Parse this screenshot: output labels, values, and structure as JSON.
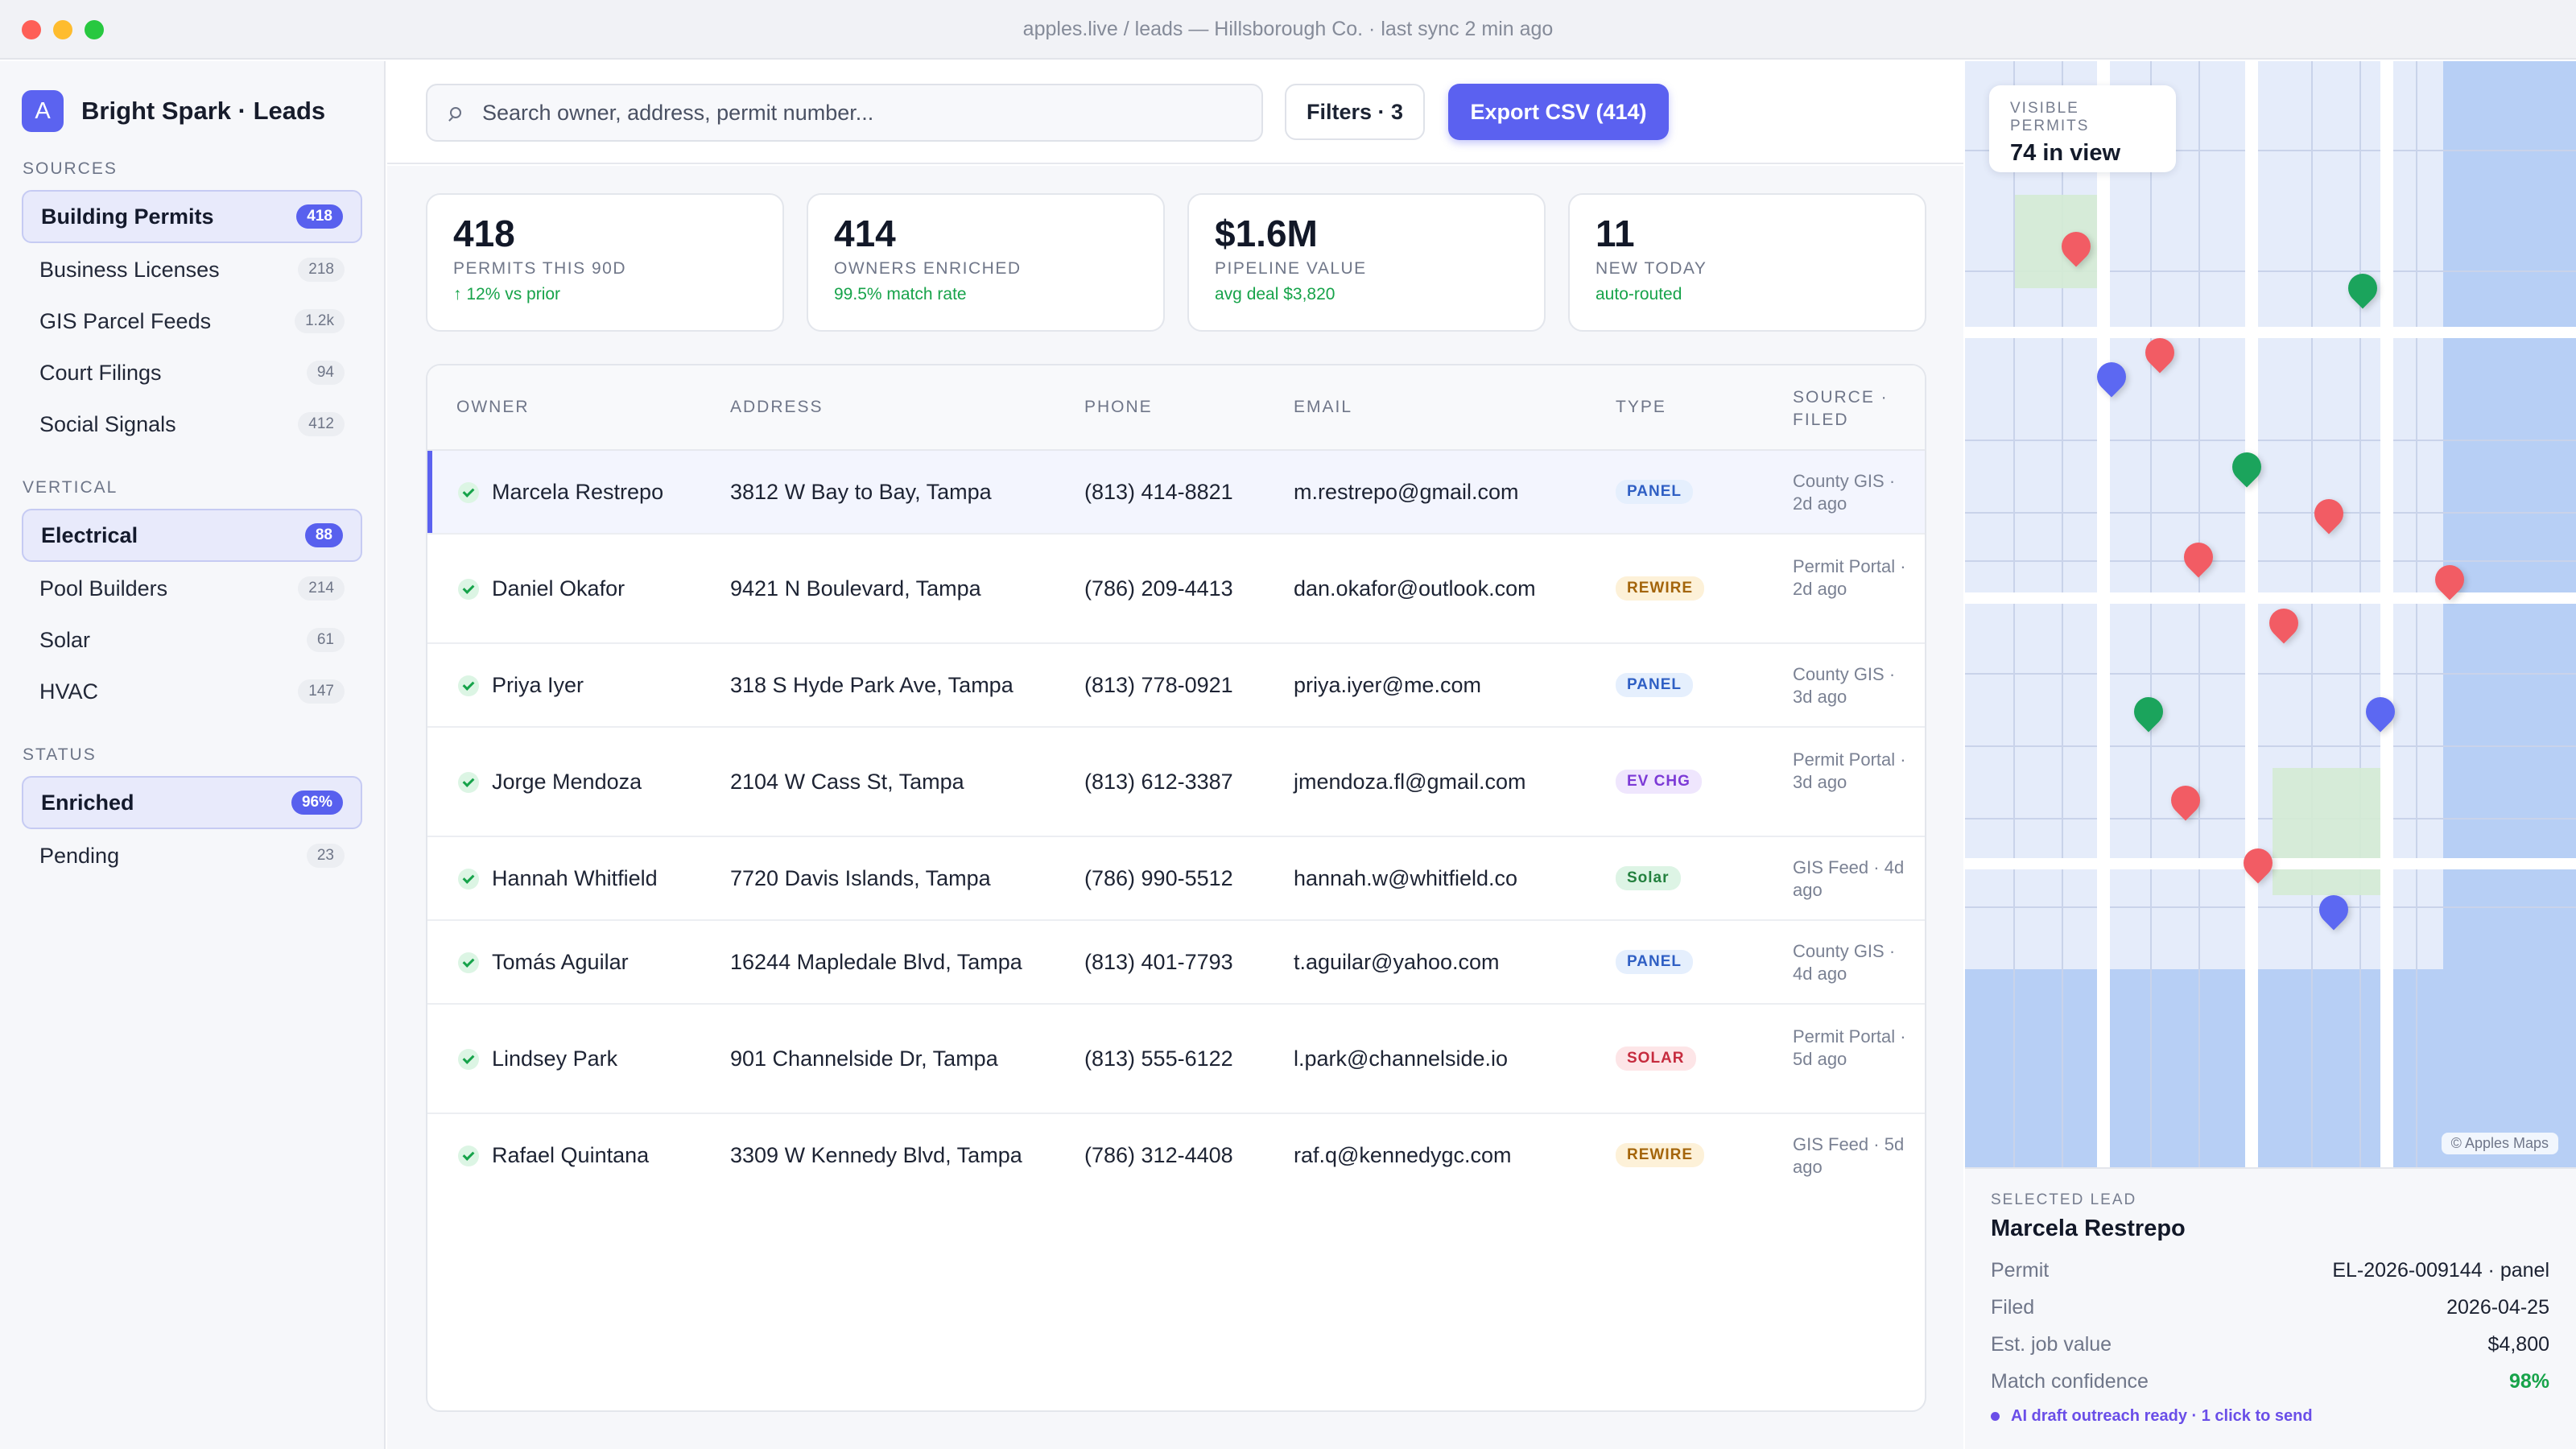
{
  "window": {
    "title": "apples.live / leads — Hillsborough Co. · last sync 2 min ago"
  },
  "brand": {
    "logo_letter": "A",
    "name": "Bright Spark · Leads"
  },
  "sidebar": {
    "sources_label": "SOURCES",
    "sources": [
      {
        "label": "Building Permits",
        "count": "418",
        "active": true
      },
      {
        "label": "Business Licenses",
        "count": "218"
      },
      {
        "label": "GIS Parcel Feeds",
        "count": "1.2k"
      },
      {
        "label": "Court Filings",
        "count": "94"
      },
      {
        "label": "Social Signals",
        "count": "412"
      }
    ],
    "vertical_label": "VERTICAL",
    "vertical": [
      {
        "label": "Electrical",
        "count": "88",
        "active": true
      },
      {
        "label": "Pool Builders",
        "count": "214"
      },
      {
        "label": "Solar",
        "count": "61"
      },
      {
        "label": "HVAC",
        "count": "147"
      }
    ],
    "status_label": "STATUS",
    "status": [
      {
        "label": "Enriched",
        "count": "96%",
        "active": true
      },
      {
        "label": "Pending",
        "count": "23"
      }
    ]
  },
  "toolbar": {
    "search_placeholder": "Search owner, address, permit number...",
    "filters_label": "Filters · 3",
    "export_label": "Export CSV (414)"
  },
  "stats": [
    {
      "value": "418",
      "label": "PERMITS THIS 90D",
      "sub": "↑ 12% vs prior"
    },
    {
      "value": "414",
      "label": "OWNERS ENRICHED",
      "sub": "99.5% match rate"
    },
    {
      "value": "$1.6M",
      "label": "PIPELINE VALUE",
      "sub": "avg deal $3,820"
    },
    {
      "value": "11",
      "label": "NEW TODAY",
      "sub": "auto-routed"
    }
  ],
  "table": {
    "headers": {
      "owner": "OWNER",
      "address": "ADDRESS",
      "phone": "PHONE",
      "email": "EMAIL",
      "type": "TYPE",
      "source_filed": "SOURCE · FILED"
    },
    "rows": [
      {
        "owner": "Marcela Restrepo",
        "address": "3812 W Bay to Bay, Tampa",
        "phone": "(813) 414-8821",
        "email": "m.restrepo@gmail.com",
        "type": "PANEL",
        "source": "County GIS · 2d ago"
      },
      {
        "owner": "Daniel Okafor",
        "address": "9421 N Boulevard, Tampa",
        "phone": "(786) 209-4413",
        "email": "dan.okafor@outlook.com",
        "type": "REWIRE",
        "source": "Permit Portal · 2d ago"
      },
      {
        "owner": "Priya Iyer",
        "address": "318 S Hyde Park Ave, Tampa",
        "phone": "(813) 778-0921",
        "email": "priya.iyer@me.com",
        "type": "PANEL",
        "source": "County GIS · 3d ago"
      },
      {
        "owner": "Jorge Mendoza",
        "address": "2104 W Cass St, Tampa",
        "phone": "(813) 612-3387",
        "email": "jmendoza.fl@gmail.com",
        "type": "EV CHG",
        "source": "Permit Portal · 3d ago"
      },
      {
        "owner": "Hannah Whitfield",
        "address": "7720 Davis Islands, Tampa",
        "phone": "(786) 990-5512",
        "email": "hannah.w@whitfield.co",
        "type": "Solar",
        "source": "GIS Feed · 4d ago"
      },
      {
        "owner": "Tomás Aguilar",
        "address": "16244 Mapledale Blvd, Tampa",
        "phone": "(813) 401-7793",
        "email": "t.aguilar@yahoo.com",
        "type": "PANEL",
        "source": "County GIS · 4d ago"
      },
      {
        "owner": "Lindsey Park",
        "address": "901 Channelside Dr, Tampa",
        "phone": "(813) 555-6122",
        "email": "l.park@channelside.io",
        "type": "SOLAR",
        "source": "Permit Portal · 5d ago"
      },
      {
        "owner": "Rafael Quintana",
        "address": "3309 W Kennedy Blvd, Tampa",
        "phone": "(786) 312-4408",
        "email": "raf.q@kennedygc.com",
        "type": "REWIRE",
        "source": "GIS Feed · 5d ago"
      }
    ]
  },
  "map": {
    "visible_label": "VISIBLE PERMITS",
    "visible_value": "74 in view",
    "attribution": "© Apples Maps"
  },
  "selected_lead": {
    "label": "SELECTED LEAD",
    "name": "Marcela Restrepo",
    "fields": [
      {
        "key": "Permit",
        "value": "EL-2026-009144 · panel"
      },
      {
        "key": "Filed",
        "value": "2026-04-25"
      },
      {
        "key": "Est. job value",
        "value": "$4,800"
      },
      {
        "key": "Match confidence",
        "value": "98%"
      }
    ],
    "ai_note": "AI draft outreach ready · 1 click to send"
  },
  "colors": {
    "accent": "#5b61f0",
    "positive": "#17a34a",
    "pin_red": "#f25c64",
    "pin_green": "#1ba45c",
    "pin_blue": "#5c68f2"
  }
}
